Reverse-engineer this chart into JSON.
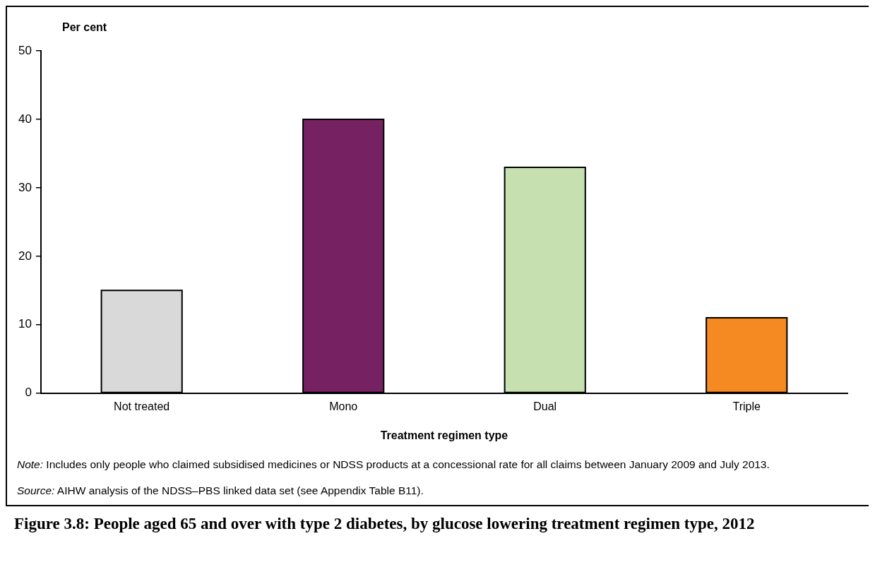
{
  "chart_data": {
    "type": "bar",
    "title": "Figure 3.8: People aged 65 and over with type 2 diabetes, by glucose lowering treatment regimen type, 2012",
    "xlabel": "Treatment regimen type",
    "ylabel": "Per cent",
    "categories": [
      "Not treated",
      "Mono",
      "Dual",
      "Triple"
    ],
    "values": [
      15,
      40,
      33,
      11
    ],
    "colors": [
      "#d9d9d9",
      "#762162",
      "#c6e0b0",
      "#f48a21"
    ],
    "ylim": [
      0,
      50
    ],
    "yticks": [
      0,
      10,
      20,
      30,
      40,
      50
    ],
    "grid": false,
    "legend": false,
    "annotations": [
      "Note: Includes only people who claimed subsidised medicines or NDSS products at a concessional rate for all claims between January 2009 and July 2013.",
      "Source: AIHW analysis of the NDSS–PBS linked data set (see Appendix Table B11)."
    ]
  }
}
